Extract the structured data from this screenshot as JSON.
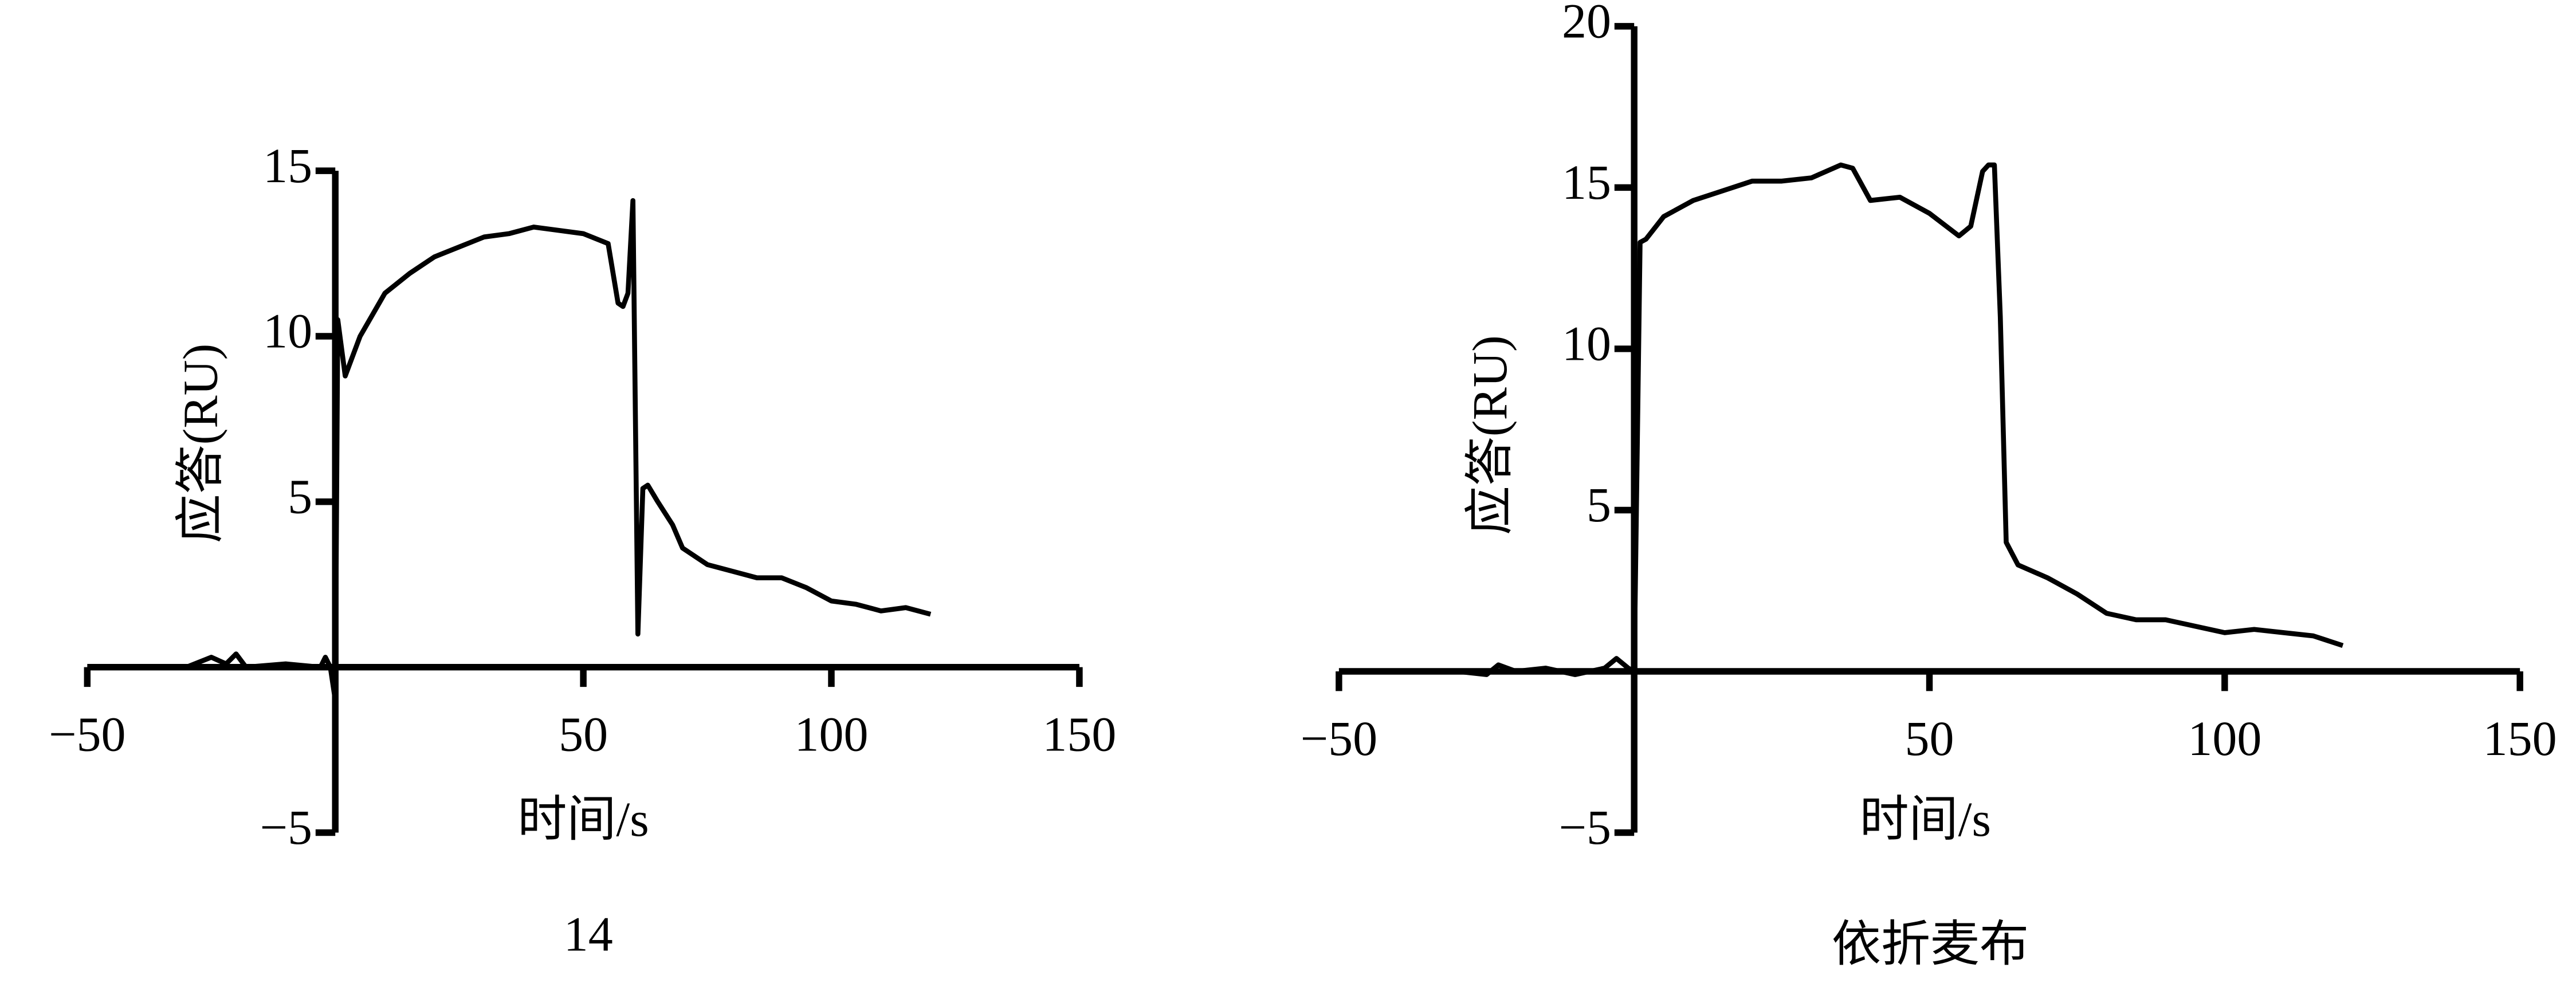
{
  "chart_data": [
    {
      "type": "line",
      "caption": "14",
      "xlabel": "时间/s",
      "ylabel": "应答(RU)",
      "color": "#000000",
      "xlim": [
        -50,
        150
      ],
      "xticks": [
        {
          "value": -50,
          "label": "−50"
        },
        50,
        100,
        150
      ],
      "ylim": [
        -5,
        15
      ],
      "yticks": [
        {
          "value": -5,
          "label": "−5"
        },
        5,
        10,
        15
      ],
      "x": [
        -30,
        -25,
        -22,
        -20,
        -18,
        -10,
        -3,
        -2,
        -1,
        0,
        0.5,
        2,
        5,
        10,
        15,
        20,
        25,
        30,
        35,
        40,
        45,
        50,
        55,
        57,
        58,
        59,
        60,
        61,
        62,
        63,
        65,
        68,
        70,
        75,
        80,
        85,
        90,
        95,
        100,
        105,
        110,
        115,
        120
      ],
      "values": [
        0,
        0.3,
        0.1,
        0.4,
        0,
        0.1,
        0,
        0.3,
        0,
        -1,
        10.5,
        8.8,
        10,
        11.3,
        11.9,
        12.4,
        12.7,
        13,
        13.1,
        13.3,
        13.2,
        13.1,
        12.8,
        11,
        10.9,
        11.3,
        14.1,
        1,
        5.4,
        5.5,
        5,
        4.3,
        3.6,
        3.1,
        2.9,
        2.7,
        2.7,
        2.4,
        2,
        1.9,
        1.7,
        1.8,
        1.6
      ]
    },
    {
      "type": "line",
      "caption": "依折麦布",
      "xlabel": "时间/s",
      "ylabel": "应答(RU)",
      "color": "#000000",
      "xlim": [
        -50,
        150
      ],
      "xticks": [
        {
          "value": -50,
          "label": "−50"
        },
        50,
        100,
        150
      ],
      "ylim": [
        -5,
        20
      ],
      "yticks": [
        {
          "value": -5,
          "label": "−5"
        },
        5,
        10,
        15,
        20
      ],
      "x": [
        -30,
        -25,
        -23,
        -20,
        -15,
        -10,
        -5,
        -3,
        -1,
        0,
        1,
        2,
        5,
        10,
        15,
        20,
        25,
        30,
        35,
        37,
        40,
        45,
        50,
        55,
        57,
        59,
        60,
        61,
        62,
        63,
        65,
        70,
        75,
        80,
        85,
        90,
        95,
        100,
        105,
        110,
        115,
        120
      ],
      "values": [
        0,
        -0.1,
        0.2,
        0,
        0.1,
        -0.1,
        0.1,
        0.4,
        0.1,
        0,
        13.3,
        13.4,
        14.1,
        14.6,
        14.9,
        15.2,
        15.2,
        15.3,
        15.7,
        15.6,
        14.6,
        14.7,
        14.2,
        13.5,
        13.8,
        15.5,
        15.7,
        15.7,
        11,
        4,
        3.3,
        2.9,
        2.4,
        1.8,
        1.6,
        1.6,
        1.4,
        1.2,
        1.3,
        1.2,
        1.1,
        0.8
      ]
    }
  ]
}
